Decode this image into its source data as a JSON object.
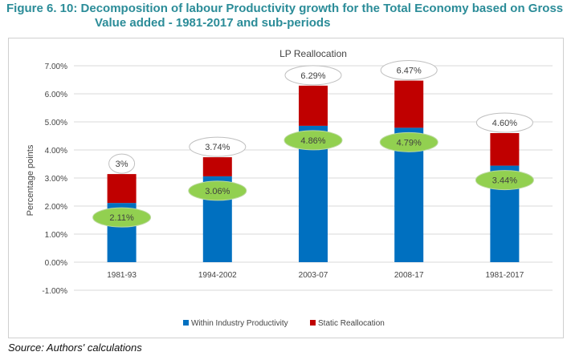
{
  "figure_title_line1": "Figure 6. 10: Decomposition of labour Productivity growth for the Total Economy based on Gross",
  "figure_title_line2": "Value added - 1981-2017 and sub-periods",
  "source": "Source: Authors' calculations",
  "chart_data": {
    "type": "bar",
    "stacked": true,
    "title": "LP Reallocation",
    "ylabel": "Percentage points",
    "xlabel": "",
    "ylim": [
      -1,
      7
    ],
    "yticks": [
      "-1.00%",
      "0.00%",
      "1.00%",
      "2.00%",
      "3.00%",
      "4.00%",
      "5.00%",
      "6.00%",
      "7.00%"
    ],
    "categories": [
      "1981-93",
      "1994-2002",
      "2003-07",
      "2008-17",
      "1981-2017"
    ],
    "series": [
      {
        "name": "Within Industry Productivity",
        "color": "#0070c0",
        "values": [
          2.11,
          3.06,
          4.86,
          4.79,
          3.44
        ],
        "labels": [
          "2.11%",
          "3.06%",
          "4.86%",
          "4.79%",
          "3.44%"
        ]
      },
      {
        "name": "Static Reallocation",
        "color": "#c00000",
        "values": [
          1.03,
          0.68,
          1.43,
          1.68,
          1.16
        ]
      }
    ],
    "total_labels": [
      "3%",
      "3.74%",
      "6.29%",
      "6.47%",
      "4.60%"
    ],
    "total_values": [
      3.14,
      3.74,
      6.29,
      6.47,
      4.6
    ],
    "grid": true,
    "legend": "bottom",
    "label_bubble_color": "#92d050"
  }
}
